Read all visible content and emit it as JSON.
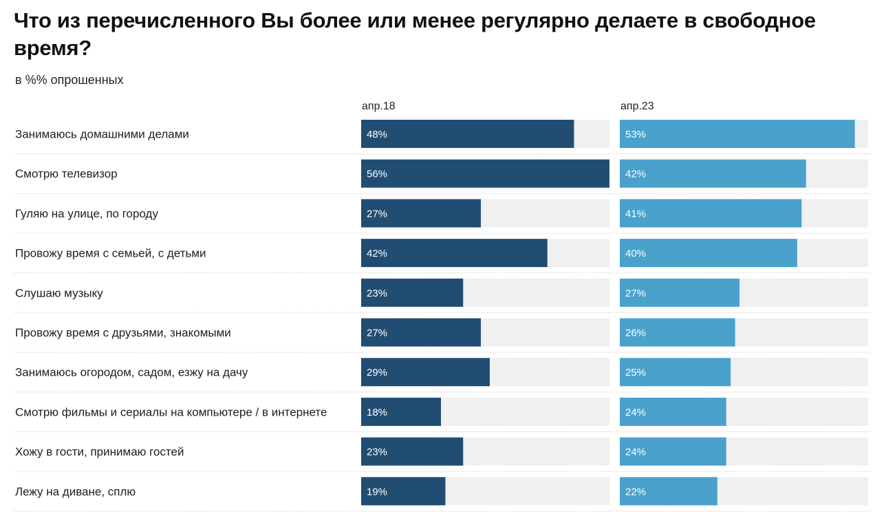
{
  "title": "Что из перечисленного Вы более или менее регулярно делаете в свободное время?",
  "subtitle": "в %% опрошенных",
  "colors": {
    "series_1": "#214d72",
    "series_2": "#4aa1cc",
    "track": "#f0f0f0",
    "divider": "#d6d6d6"
  },
  "chart_data": {
    "type": "bar",
    "orientation": "horizontal",
    "categories": [
      "Занимаюсь домашними делами",
      "Смотрю телевизор",
      "Гуляю на улице, по городу",
      "Провожу время с семьей, с детьми",
      "Слушаю музыку",
      "Провожу время с друзьями, знакомыми",
      "Занимаюсь огородом, садом, езжу на дачу",
      "Смотрю фильмы и сериалы на компьютере / в интернете",
      "Хожу в гости, принимаю гостей",
      "Лежу на диване, сплю"
    ],
    "series": [
      {
        "name": "апр.18",
        "values": [
          48,
          56,
          27,
          42,
          23,
          27,
          29,
          18,
          23,
          19
        ],
        "labels": [
          "48%",
          "56%",
          "27%",
          "42%",
          "23%",
          "27%",
          "29%",
          "18%",
          "23%",
          "19%"
        ]
      },
      {
        "name": "апр.23",
        "values": [
          53,
          42,
          41,
          40,
          27,
          26,
          25,
          24,
          24,
          22
        ],
        "labels": [
          "53%",
          "42%",
          "41%",
          "40%",
          "27%",
          "26%",
          "25%",
          "24%",
          "24%",
          "22%"
        ]
      }
    ],
    "xlim": [
      0,
      56
    ],
    "unit": "%"
  }
}
